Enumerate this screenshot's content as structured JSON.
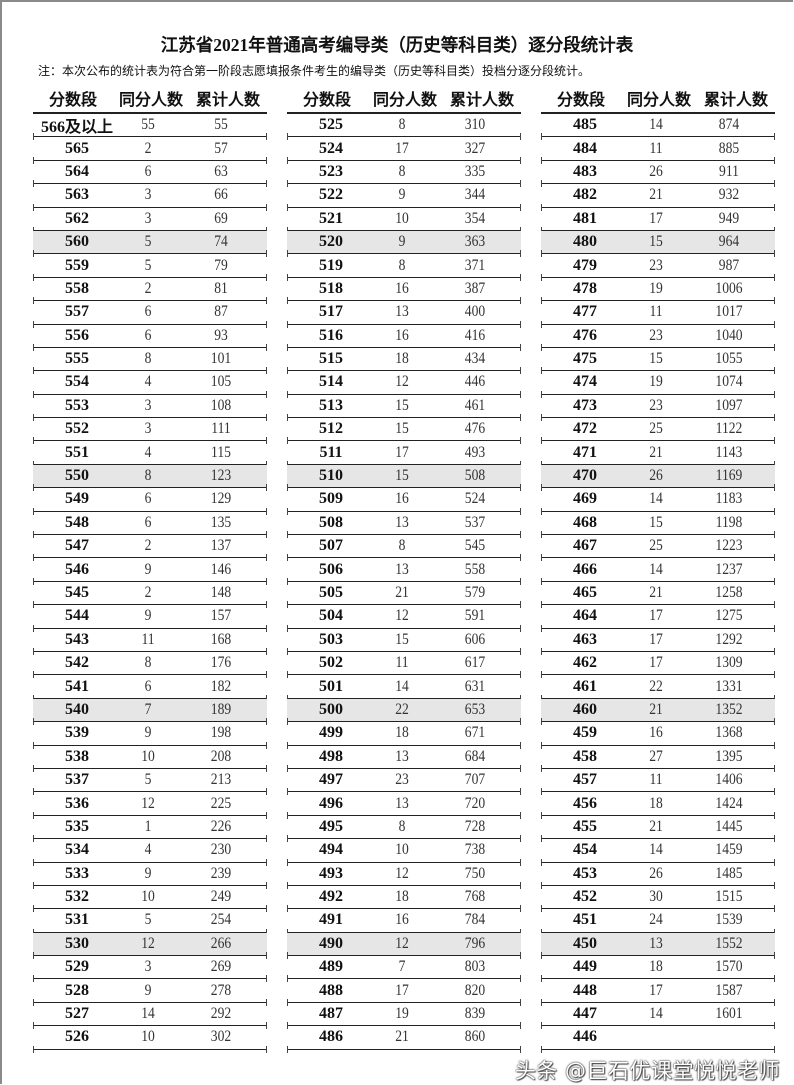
{
  "title": "江苏省2021年普通高考编导类（历史等科目类）逐分段统计表",
  "note": "注：本次公布的统计表为符合第一阶段志愿填报条件考生的编导类（历史等科目类）投档分逐分段统计。",
  "headers": [
    "分数段",
    "同分人数",
    "累计人数"
  ],
  "columns": [
    [
      [
        "566及以上",
        "55",
        "55"
      ],
      [
        "565",
        "2",
        "57"
      ],
      [
        "564",
        "6",
        "63"
      ],
      [
        "563",
        "3",
        "66"
      ],
      [
        "562",
        "3",
        "69"
      ],
      [
        "560",
        "5",
        "74"
      ],
      [
        "559",
        "5",
        "79"
      ],
      [
        "558",
        "2",
        "81"
      ],
      [
        "557",
        "6",
        "87"
      ],
      [
        "556",
        "6",
        "93"
      ],
      [
        "555",
        "8",
        "101"
      ],
      [
        "554",
        "4",
        "105"
      ],
      [
        "553",
        "3",
        "108"
      ],
      [
        "552",
        "3",
        "111"
      ],
      [
        "551",
        "4",
        "115"
      ],
      [
        "550",
        "8",
        "123"
      ],
      [
        "549",
        "6",
        "129"
      ],
      [
        "548",
        "6",
        "135"
      ],
      [
        "547",
        "2",
        "137"
      ],
      [
        "546",
        "9",
        "146"
      ],
      [
        "545",
        "2",
        "148"
      ],
      [
        "544",
        "9",
        "157"
      ],
      [
        "543",
        "11",
        "168"
      ],
      [
        "542",
        "8",
        "176"
      ],
      [
        "541",
        "6",
        "182"
      ],
      [
        "540",
        "7",
        "189"
      ],
      [
        "539",
        "9",
        "198"
      ],
      [
        "538",
        "10",
        "208"
      ],
      [
        "537",
        "5",
        "213"
      ],
      [
        "536",
        "12",
        "225"
      ],
      [
        "535",
        "1",
        "226"
      ],
      [
        "534",
        "4",
        "230"
      ],
      [
        "533",
        "9",
        "239"
      ],
      [
        "532",
        "10",
        "249"
      ],
      [
        "531",
        "5",
        "254"
      ],
      [
        "530",
        "12",
        "266"
      ],
      [
        "529",
        "3",
        "269"
      ],
      [
        "528",
        "9",
        "278"
      ],
      [
        "527",
        "14",
        "292"
      ],
      [
        "526",
        "10",
        "302"
      ]
    ],
    [
      [
        "525",
        "8",
        "310"
      ],
      [
        "524",
        "17",
        "327"
      ],
      [
        "523",
        "8",
        "335"
      ],
      [
        "522",
        "9",
        "344"
      ],
      [
        "521",
        "10",
        "354"
      ],
      [
        "520",
        "9",
        "363"
      ],
      [
        "519",
        "8",
        "371"
      ],
      [
        "518",
        "16",
        "387"
      ],
      [
        "517",
        "13",
        "400"
      ],
      [
        "516",
        "16",
        "416"
      ],
      [
        "515",
        "18",
        "434"
      ],
      [
        "514",
        "12",
        "446"
      ],
      [
        "513",
        "15",
        "461"
      ],
      [
        "512",
        "15",
        "476"
      ],
      [
        "511",
        "17",
        "493"
      ],
      [
        "510",
        "15",
        "508"
      ],
      [
        "509",
        "16",
        "524"
      ],
      [
        "508",
        "13",
        "537"
      ],
      [
        "507",
        "8",
        "545"
      ],
      [
        "506",
        "13",
        "558"
      ],
      [
        "505",
        "21",
        "579"
      ],
      [
        "504",
        "12",
        "591"
      ],
      [
        "503",
        "15",
        "606"
      ],
      [
        "502",
        "11",
        "617"
      ],
      [
        "501",
        "14",
        "631"
      ],
      [
        "500",
        "22",
        "653"
      ],
      [
        "499",
        "18",
        "671"
      ],
      [
        "498",
        "13",
        "684"
      ],
      [
        "497",
        "23",
        "707"
      ],
      [
        "496",
        "13",
        "720"
      ],
      [
        "495",
        "8",
        "728"
      ],
      [
        "494",
        "10",
        "738"
      ],
      [
        "493",
        "12",
        "750"
      ],
      [
        "492",
        "18",
        "768"
      ],
      [
        "491",
        "16",
        "784"
      ],
      [
        "490",
        "12",
        "796"
      ],
      [
        "489",
        "7",
        "803"
      ],
      [
        "488",
        "17",
        "820"
      ],
      [
        "487",
        "19",
        "839"
      ],
      [
        "486",
        "21",
        "860"
      ]
    ],
    [
      [
        "485",
        "14",
        "874"
      ],
      [
        "484",
        "11",
        "885"
      ],
      [
        "483",
        "26",
        "911"
      ],
      [
        "482",
        "21",
        "932"
      ],
      [
        "481",
        "17",
        "949"
      ],
      [
        "480",
        "15",
        "964"
      ],
      [
        "479",
        "23",
        "987"
      ],
      [
        "478",
        "19",
        "1006"
      ],
      [
        "477",
        "11",
        "1017"
      ],
      [
        "476",
        "23",
        "1040"
      ],
      [
        "475",
        "15",
        "1055"
      ],
      [
        "474",
        "19",
        "1074"
      ],
      [
        "473",
        "23",
        "1097"
      ],
      [
        "472",
        "25",
        "1122"
      ],
      [
        "471",
        "21",
        "1143"
      ],
      [
        "470",
        "26",
        "1169"
      ],
      [
        "469",
        "14",
        "1183"
      ],
      [
        "468",
        "15",
        "1198"
      ],
      [
        "467",
        "25",
        "1223"
      ],
      [
        "466",
        "14",
        "1237"
      ],
      [
        "465",
        "21",
        "1258"
      ],
      [
        "464",
        "17",
        "1275"
      ],
      [
        "463",
        "17",
        "1292"
      ],
      [
        "462",
        "17",
        "1309"
      ],
      [
        "461",
        "22",
        "1331"
      ],
      [
        "460",
        "21",
        "1352"
      ],
      [
        "459",
        "16",
        "1368"
      ],
      [
        "458",
        "27",
        "1395"
      ],
      [
        "457",
        "11",
        "1406"
      ],
      [
        "456",
        "18",
        "1424"
      ],
      [
        "455",
        "21",
        "1445"
      ],
      [
        "454",
        "14",
        "1459"
      ],
      [
        "453",
        "26",
        "1485"
      ],
      [
        "452",
        "30",
        "1515"
      ],
      [
        "451",
        "24",
        "1539"
      ],
      [
        "450",
        "13",
        "1552"
      ],
      [
        "449",
        "18",
        "1570"
      ],
      [
        "448",
        "17",
        "1587"
      ],
      [
        "447",
        "14",
        "1601"
      ],
      [
        "446",
        "",
        ""
      ]
    ]
  ],
  "highlight_color": "#e6e6e6",
  "watermark": "头条 @巨石优课堂悦悦老师"
}
